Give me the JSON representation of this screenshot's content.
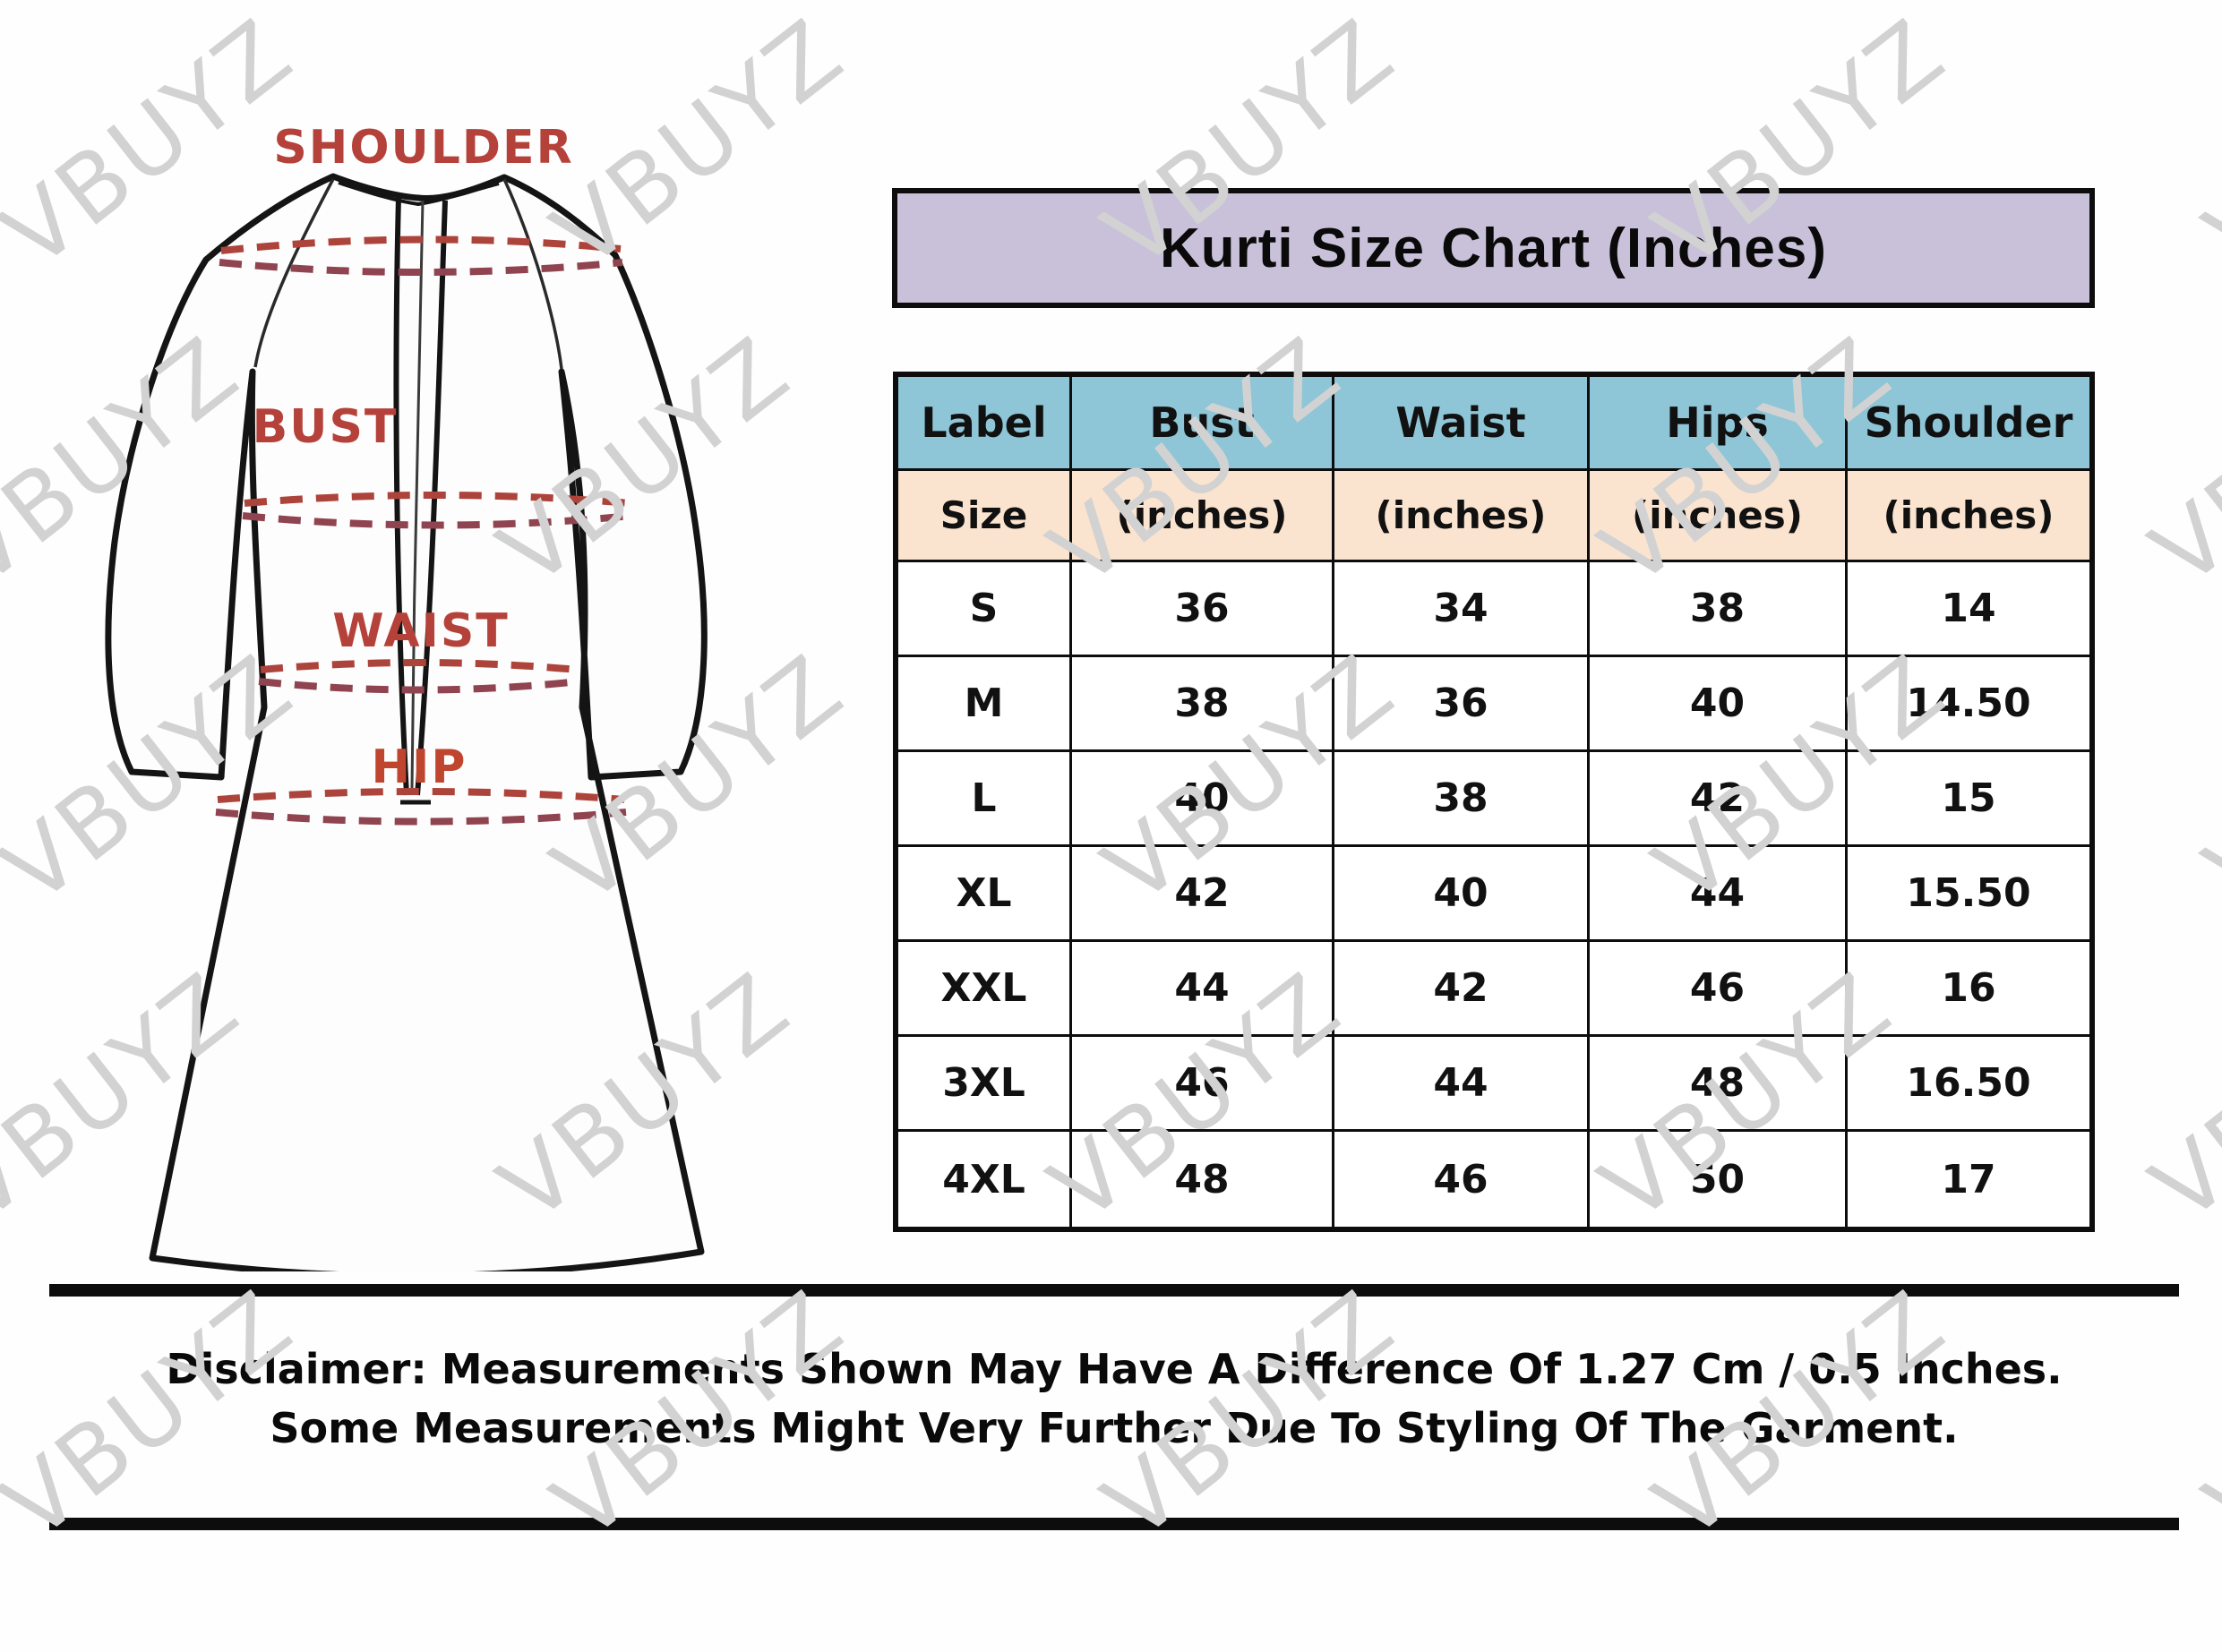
{
  "watermark": {
    "text": "VBUYZ",
    "color": "#d2d2d2"
  },
  "banner": {
    "title": "Kurti Size Chart (Inches)",
    "bg_color": "#c9c1d9"
  },
  "figure": {
    "labels": {
      "shoulder": "SHOULDER",
      "bust": "BUST",
      "waist": "WAIST",
      "hip": "HIP"
    },
    "label_color": "#b5423a",
    "hip_label_color": "#c0452e",
    "dash_color_upper": "#ad443b",
    "dash_color_lower": "#8f4450",
    "outline_color": "#141414"
  },
  "table": {
    "header": [
      "Label",
      "Bust",
      "Waist",
      "Hips",
      "Shoulder"
    ],
    "subheader": [
      "Size",
      "(inches)",
      "(inches)",
      "(inches)",
      "(inches)"
    ],
    "rows": [
      [
        "S",
        "36",
        "34",
        "38",
        "14"
      ],
      [
        "M",
        "38",
        "36",
        "40",
        "14.50"
      ],
      [
        "L",
        "40",
        "38",
        "42",
        "15"
      ],
      [
        "XL",
        "42",
        "40",
        "44",
        "15.50"
      ],
      [
        "XXL",
        "44",
        "42",
        "46",
        "16"
      ],
      [
        "3XL",
        "46",
        "44",
        "48",
        "16.50"
      ],
      [
        "4XL",
        "48",
        "46",
        "50",
        "17"
      ]
    ],
    "header_bg": "#8ec6d7",
    "subheader_bg": "#fbe4cf"
  },
  "disclaimer": {
    "line1": "Disclaimer: Measurements Shown May Have A Difference Of 1.27 Cm / 0.5 Inches.",
    "line2": "Some Measurements Might Very Further Due To Styling Of The Garment."
  },
  "chart_data": {
    "type": "table",
    "title": "Kurti Size Chart (Inches)",
    "columns": [
      "Label / Size",
      "Bust (inches)",
      "Waist (inches)",
      "Hips (inches)",
      "Shoulder (inches)"
    ],
    "rows": [
      [
        "S",
        36,
        34,
        38,
        14
      ],
      [
        "M",
        38,
        36,
        40,
        14.5
      ],
      [
        "L",
        40,
        38,
        42,
        15
      ],
      [
        "XL",
        42,
        40,
        44,
        15.5
      ],
      [
        "XXL",
        44,
        42,
        46,
        16
      ],
      [
        "3XL",
        46,
        44,
        48,
        16.5
      ],
      [
        "4XL",
        48,
        46,
        50,
        17
      ]
    ]
  }
}
